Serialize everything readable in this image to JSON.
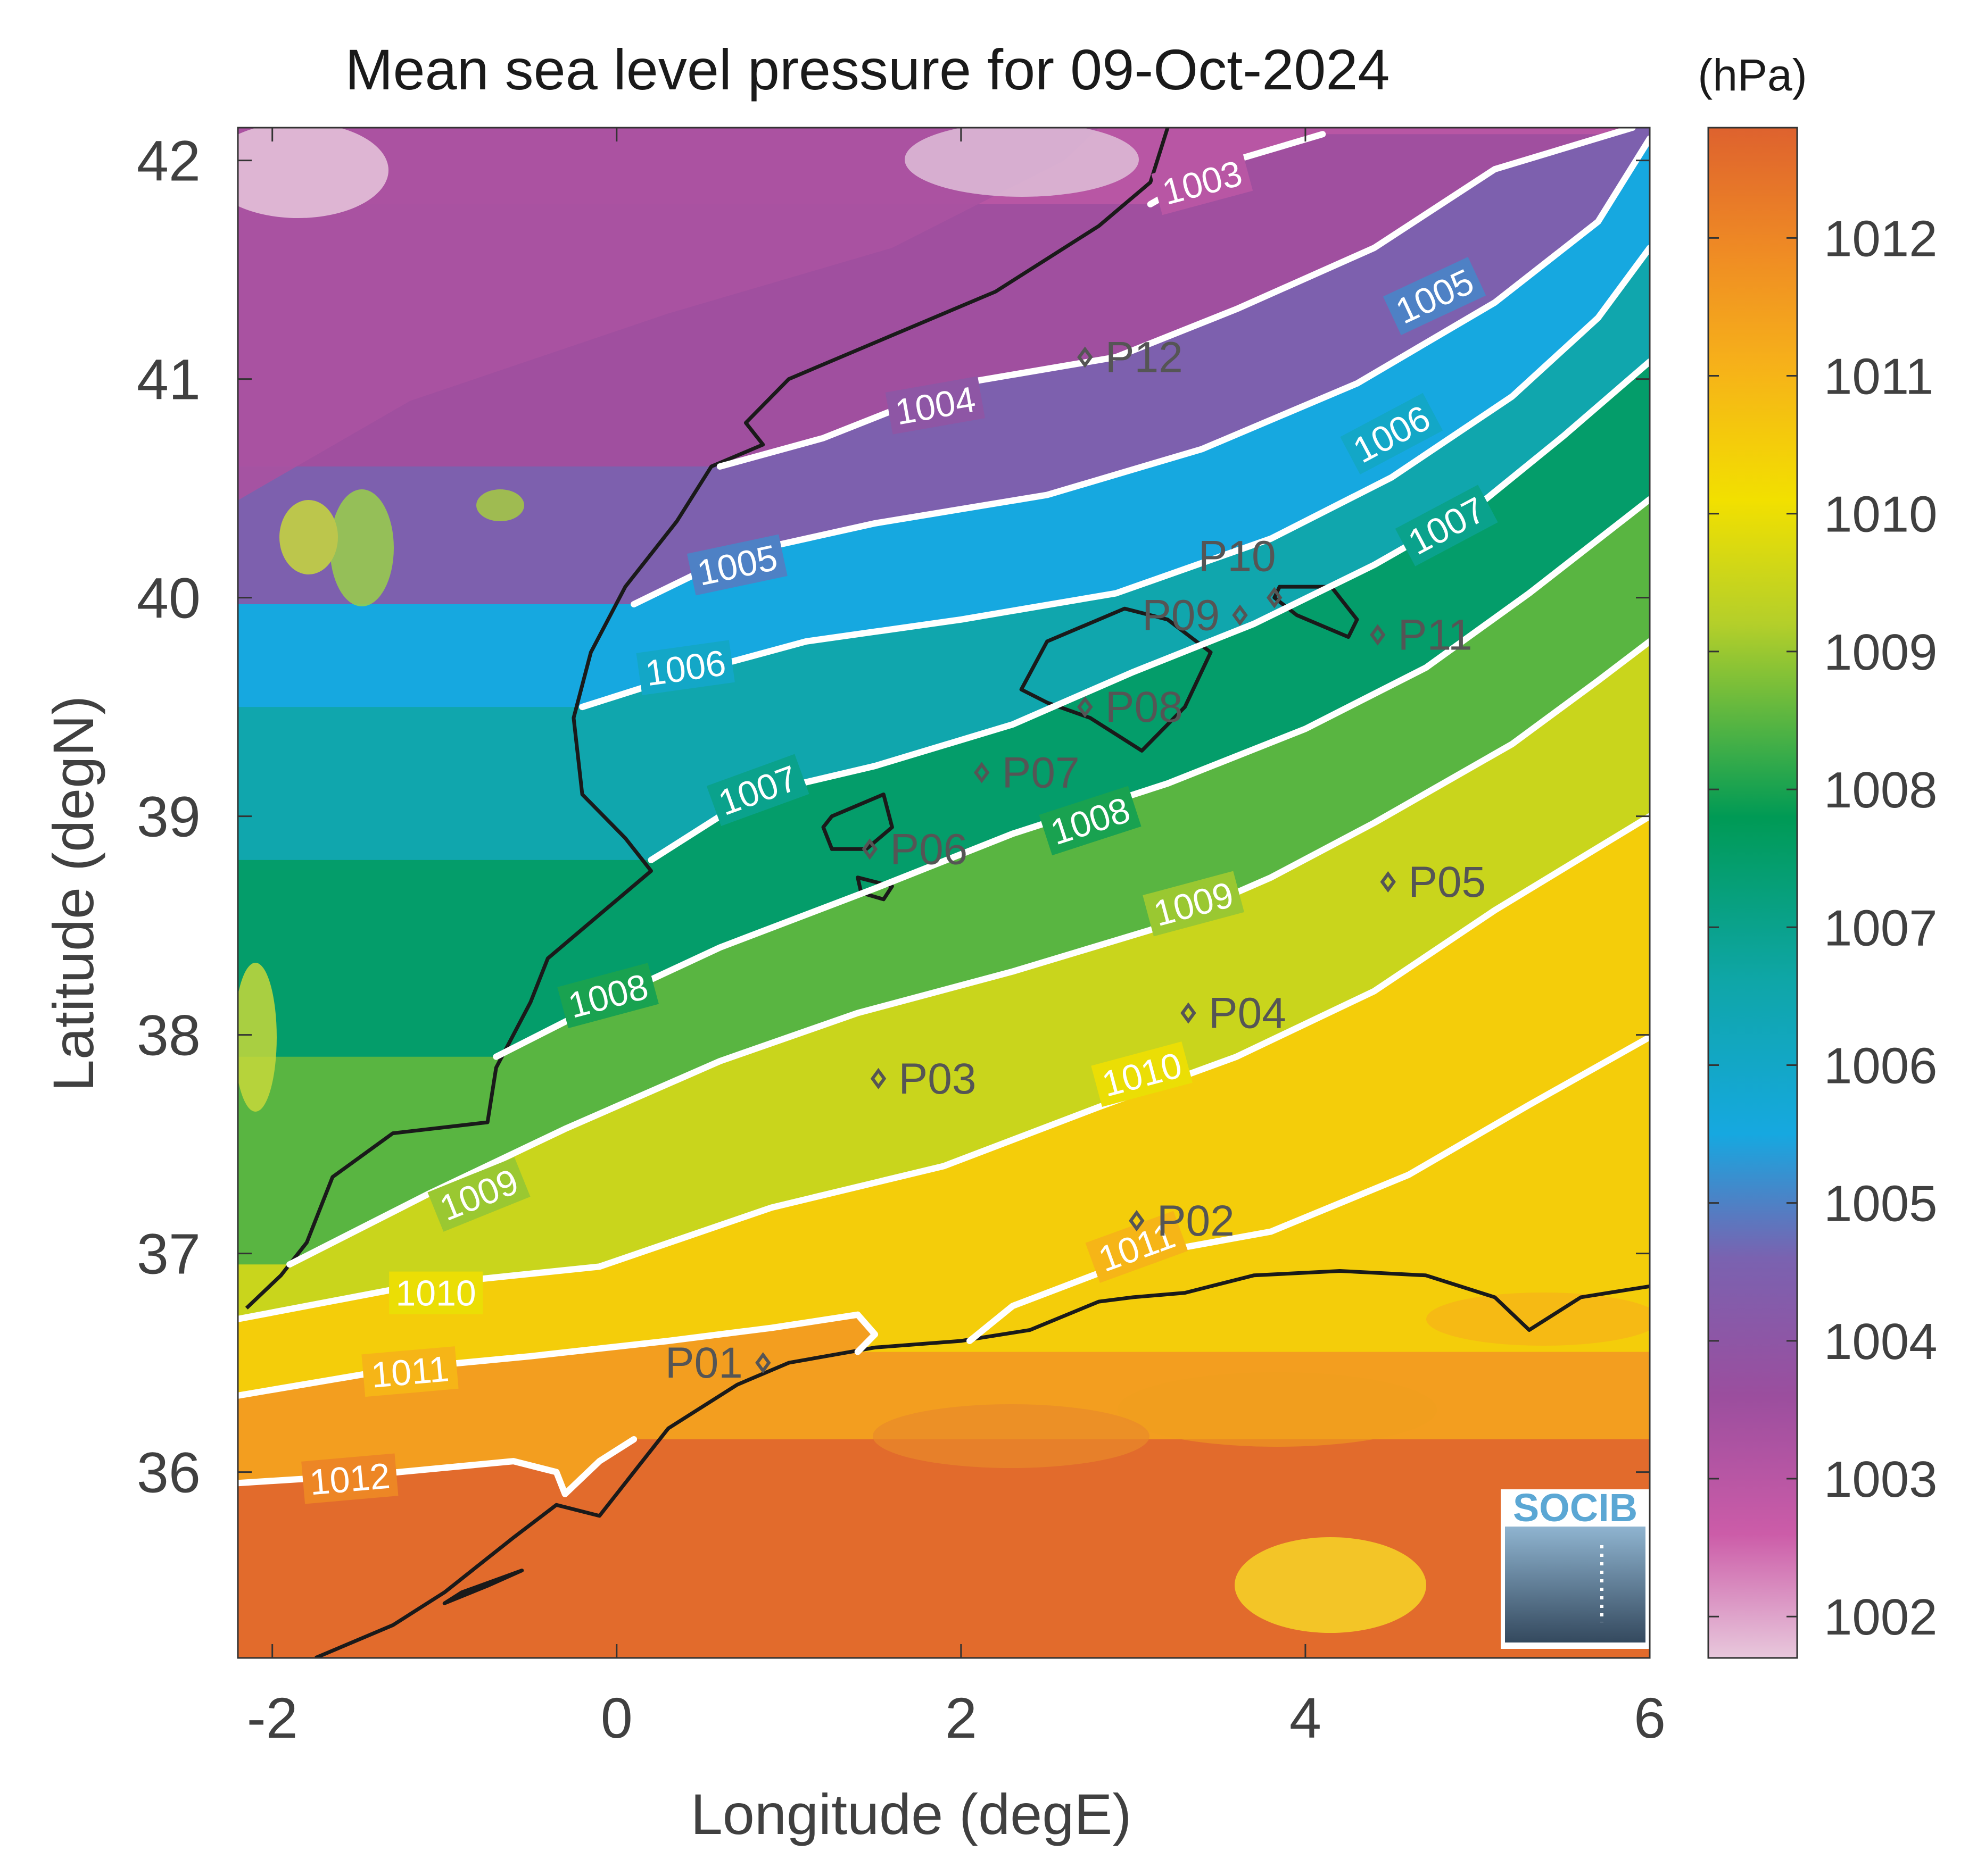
{
  "title": "Mean sea level pressure for 09-Oct-2024",
  "colorbar": {
    "unit": "(hPa)",
    "range": [
      1001.7,
      1012.8
    ],
    "ticks": [
      1002,
      1003,
      1004,
      1005,
      1006,
      1007,
      1008,
      1009,
      1010,
      1011,
      1012
    ],
    "colors": [
      {
        "v": 1001.7,
        "c": "#e8c8dc"
      },
      {
        "v": 1002.6,
        "c": "#cc5ca8"
      },
      {
        "v": 1003.6,
        "c": "#9b4e9e"
      },
      {
        "v": 1004.6,
        "c": "#7a62b0"
      },
      {
        "v": 1005.5,
        "c": "#16a8e0"
      },
      {
        "v": 1006.6,
        "c": "#0fa6a8"
      },
      {
        "v": 1007.8,
        "c": "#009a55"
      },
      {
        "v": 1008.3,
        "c": "#3fae48"
      },
      {
        "v": 1009.2,
        "c": "#b4cf2a"
      },
      {
        "v": 1010.1,
        "c": "#f2e000"
      },
      {
        "v": 1011.1,
        "c": "#f6b01a"
      },
      {
        "v": 1011.9,
        "c": "#ef8b24"
      },
      {
        "v": 1012.8,
        "c": "#de622e"
      }
    ]
  },
  "axes": {
    "xlabel": "Longitude (degE)",
    "ylabel": "Latitude (degN)",
    "xlim": [
      -2.2,
      6.0
    ],
    "ylim": [
      35.15,
      42.15
    ],
    "xticks": [
      -2,
      0,
      2,
      4,
      6
    ],
    "xtick_labels": [
      "-2",
      "0",
      "2",
      "4",
      "6"
    ],
    "yticks": [
      36,
      37,
      38,
      39,
      40,
      41,
      42
    ],
    "ytick_labels": [
      "36",
      "37",
      "38",
      "39",
      "40",
      "41",
      "42"
    ]
  },
  "chart_data": {
    "type": "heatmap",
    "title": "Mean sea level pressure for 09-Oct-2024",
    "xlabel": "Longitude (degE)",
    "ylabel": "Latitude (degN)",
    "colorbar_unit": "(hPa)",
    "xlim": [
      -2.2,
      6.0
    ],
    "ylim": [
      35.15,
      42.15
    ],
    "contours": [
      {
        "level": 1003,
        "label": "1003",
        "points": [
          [
            3.1,
            41.8
          ],
          [
            3.5,
            41.98
          ],
          [
            4.1,
            42.12
          ]
        ]
      },
      {
        "level": 1004,
        "label": "1004",
        "points": [
          [
            0.6,
            40.6
          ],
          [
            1.2,
            40.73
          ],
          [
            2.0,
            40.98
          ],
          [
            2.9,
            41.1
          ],
          [
            3.6,
            41.32
          ],
          [
            4.4,
            41.6
          ],
          [
            5.1,
            41.96
          ],
          [
            5.9,
            42.15
          ]
        ]
      },
      {
        "level": 1005,
        "label": "1005",
        "points": [
          [
            0.1,
            39.97
          ],
          [
            0.7,
            40.2
          ],
          [
            1.5,
            40.34
          ],
          [
            2.5,
            40.47
          ],
          [
            3.4,
            40.68
          ],
          [
            4.3,
            40.98
          ],
          [
            5.1,
            41.35
          ],
          [
            5.7,
            41.72
          ],
          [
            6.0,
            42.1
          ]
        ]
      },
      {
        "level": 1006,
        "label": "1006",
        "points": [
          [
            -0.2,
            39.5
          ],
          [
            0.4,
            39.65
          ],
          [
            1.1,
            39.8
          ],
          [
            2.0,
            39.9
          ],
          [
            2.9,
            40.02
          ],
          [
            3.8,
            40.27
          ],
          [
            4.5,
            40.55
          ],
          [
            5.2,
            40.92
          ],
          [
            5.7,
            41.28
          ],
          [
            6.0,
            41.6
          ]
        ]
      },
      {
        "level": 1007,
        "label": "1007",
        "points": [
          [
            0.2,
            38.8
          ],
          [
            0.8,
            39.1
          ],
          [
            1.5,
            39.23
          ],
          [
            2.3,
            39.42
          ],
          [
            3.0,
            39.66
          ],
          [
            3.7,
            39.88
          ],
          [
            4.4,
            40.15
          ],
          [
            5.0,
            40.42
          ],
          [
            5.5,
            40.74
          ],
          [
            6.0,
            41.08
          ]
        ]
      },
      {
        "level": 1008,
        "label": "1008",
        "points": [
          [
            -0.7,
            37.9
          ],
          [
            0.0,
            38.18
          ],
          [
            0.6,
            38.4
          ],
          [
            1.5,
            38.67
          ],
          [
            2.3,
            38.92
          ],
          [
            3.2,
            39.15
          ],
          [
            4.0,
            39.4
          ],
          [
            4.7,
            39.68
          ],
          [
            5.3,
            40.02
          ],
          [
            6.0,
            40.45
          ]
        ]
      },
      {
        "level": 1009,
        "label": "1009",
        "points": [
          [
            -1.9,
            36.95
          ],
          [
            -1.1,
            37.27
          ],
          [
            -0.3,
            37.57
          ],
          [
            0.6,
            37.88
          ],
          [
            1.4,
            38.1
          ],
          [
            2.3,
            38.29
          ],
          [
            3.1,
            38.48
          ],
          [
            3.8,
            38.72
          ],
          [
            4.4,
            38.97
          ],
          [
            5.2,
            39.33
          ],
          [
            5.7,
            39.62
          ],
          [
            6.0,
            39.8
          ]
        ]
      },
      {
        "level": 1010,
        "label": "1010",
        "points": [
          [
            -2.2,
            36.7
          ],
          [
            -1.2,
            36.85
          ],
          [
            -0.1,
            36.94
          ],
          [
            0.9,
            37.21
          ],
          [
            1.9,
            37.4
          ],
          [
            2.8,
            37.67
          ],
          [
            3.6,
            37.9
          ],
          [
            4.4,
            38.2
          ],
          [
            5.1,
            38.57
          ],
          [
            6.0,
            39.0
          ]
        ]
      },
      {
        "level": 1011,
        "label": "1011",
        "points": [
          [
            -2.2,
            36.35
          ],
          [
            -1.3,
            36.47
          ],
          [
            -0.5,
            36.53
          ],
          [
            0.3,
            36.6
          ],
          [
            0.9,
            36.66
          ],
          [
            1.4,
            36.72
          ],
          [
            1.5,
            36.63
          ],
          [
            1.4,
            36.55
          ]
        ]
      },
      {
        "level": 1011,
        "label": "1011",
        "points": [
          [
            2.05,
            36.6
          ],
          [
            2.3,
            36.76
          ],
          [
            2.6,
            36.85
          ],
          [
            3.1,
            37.0
          ],
          [
            3.8,
            37.1
          ],
          [
            4.6,
            37.36
          ],
          [
            5.3,
            37.68
          ],
          [
            6.0,
            37.99
          ]
        ]
      },
      {
        "level": 1012,
        "label": "1012",
        "points": [
          [
            -2.2,
            35.95
          ],
          [
            -1.4,
            35.99
          ],
          [
            -0.6,
            36.05
          ],
          [
            -0.35,
            36.0
          ],
          [
            -0.3,
            35.9
          ],
          [
            -0.1,
            36.05
          ],
          [
            0.1,
            36.15
          ]
        ]
      }
    ],
    "contour_labels": [
      {
        "text": "1003",
        "x": 3.4,
        "y": 41.9,
        "angle": -15
      },
      {
        "text": "1004",
        "x": 1.85,
        "y": 40.88,
        "angle": -10
      },
      {
        "text": "1005",
        "x": 0.7,
        "y": 40.15,
        "angle": -12
      },
      {
        "text": "1005",
        "x": 4.75,
        "y": 41.38,
        "angle": -25
      },
      {
        "text": "1006",
        "x": 0.4,
        "y": 39.68,
        "angle": -8
      },
      {
        "text": "1006",
        "x": 4.5,
        "y": 40.75,
        "angle": -28
      },
      {
        "text": "1007",
        "x": 0.82,
        "y": 39.12,
        "angle": -20
      },
      {
        "text": "1007",
        "x": 4.82,
        "y": 40.33,
        "angle": -28
      },
      {
        "text": "1008",
        "x": -0.05,
        "y": 38.18,
        "angle": -15
      },
      {
        "text": "1008",
        "x": 2.75,
        "y": 38.98,
        "angle": -18
      },
      {
        "text": "1009",
        "x": -0.8,
        "y": 37.27,
        "angle": -22
      },
      {
        "text": "1009",
        "x": 3.35,
        "y": 38.6,
        "angle": -15
      },
      {
        "text": "1010",
        "x": -1.05,
        "y": 36.82,
        "angle": 0
      },
      {
        "text": "1010",
        "x": 3.05,
        "y": 37.82,
        "angle": -15
      },
      {
        "text": "1011",
        "x": -1.2,
        "y": 36.46,
        "angle": -5
      },
      {
        "text": "1011",
        "x": 3.02,
        "y": 37.03,
        "angle": -20
      },
      {
        "text": "1012",
        "x": -1.55,
        "y": 35.97,
        "angle": -5
      }
    ],
    "stations": [
      {
        "name": "P01",
        "x": 0.85,
        "y": 36.5,
        "label_side": "left"
      },
      {
        "name": "P02",
        "x": 3.02,
        "y": 37.15,
        "label_side": "right"
      },
      {
        "name": "P03",
        "x": 1.52,
        "y": 37.8,
        "label_side": "right"
      },
      {
        "name": "P04",
        "x": 3.32,
        "y": 38.1,
        "label_side": "right"
      },
      {
        "name": "P05",
        "x": 4.48,
        "y": 38.7,
        "label_side": "right"
      },
      {
        "name": "P06",
        "x": 1.47,
        "y": 38.85,
        "label_side": "right"
      },
      {
        "name": "P07",
        "x": 2.12,
        "y": 39.2,
        "label_side": "right"
      },
      {
        "name": "P08",
        "x": 2.72,
        "y": 39.5,
        "label_side": "right"
      },
      {
        "name": "P09",
        "x": 3.62,
        "y": 39.92,
        "label_side": "left"
      },
      {
        "name": "P10",
        "x": 3.82,
        "y": 40.0,
        "label_side": "above"
      },
      {
        "name": "P11",
        "x": 4.42,
        "y": 39.83,
        "label_side": "right"
      },
      {
        "name": "P12",
        "x": 2.72,
        "y": 41.1,
        "label_side": "right"
      }
    ]
  },
  "logo": {
    "text": "SOCIB"
  },
  "colors": {
    "axis_text": "#404040",
    "contour": "#ffffff",
    "coastline": "#1a1a1a",
    "station": "#555555",
    "logo_blue": "#5ba7d4"
  }
}
